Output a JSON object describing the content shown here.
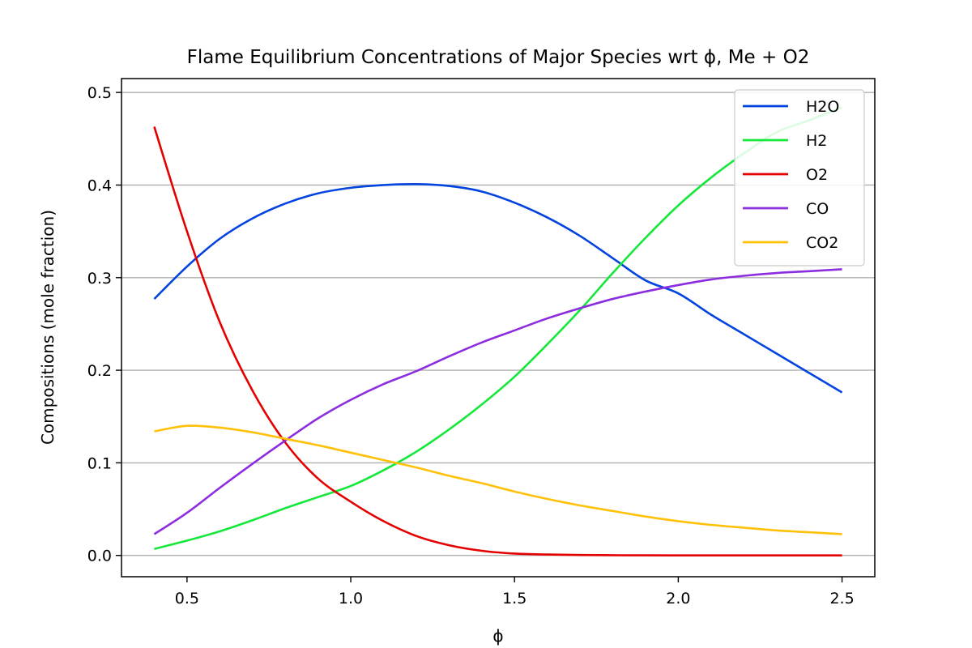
{
  "chart_data": {
    "type": "line",
    "title": "Flame Equilibrium Concentrations of Major Species wrt ϕ, Me + O2",
    "xlabel": "ϕ",
    "ylabel": "Compositions (mole fraction)",
    "xlim": [
      0.3,
      2.6
    ],
    "ylim": [
      -0.023,
      0.515
    ],
    "xticks": [
      0.5,
      1.0,
      1.5,
      2.0,
      2.5
    ],
    "xtick_labels": [
      "0.5",
      "1.0",
      "1.5",
      "2.0",
      "2.5"
    ],
    "yticks": [
      0.0,
      0.1,
      0.2,
      0.3,
      0.4,
      0.5
    ],
    "ytick_labels": [
      "0.0",
      "0.1",
      "0.2",
      "0.3",
      "0.4",
      "0.5"
    ],
    "grid": "horizontal",
    "legend_position": "top-right",
    "x": [
      0.4,
      0.5,
      0.6,
      0.7,
      0.8,
      0.9,
      1.0,
      1.1,
      1.2,
      1.3,
      1.4,
      1.5,
      1.6,
      1.7,
      1.8,
      1.9,
      2.0,
      2.1,
      2.2,
      2.3,
      2.4,
      2.5
    ],
    "series": [
      {
        "name": "H2O",
        "color": "#0343df",
        "values": [
          0.277,
          0.312,
          0.342,
          0.364,
          0.38,
          0.391,
          0.397,
          0.4,
          0.401,
          0.399,
          0.393,
          0.381,
          0.365,
          0.345,
          0.321,
          0.297,
          0.283,
          0.26,
          0.239,
          0.218,
          0.197,
          0.176
        ]
      },
      {
        "name": "H2",
        "color": "#15e83a",
        "values": [
          0.007,
          0.016,
          0.026,
          0.038,
          0.051,
          0.063,
          0.075,
          0.092,
          0.112,
          0.136,
          0.163,
          0.193,
          0.228,
          0.265,
          0.305,
          0.343,
          0.378,
          0.408,
          0.434,
          0.457,
          0.47,
          0.484
        ]
      },
      {
        "name": "O2",
        "color": "#e50000",
        "values": [
          0.463,
          0.35,
          0.252,
          0.178,
          0.122,
          0.083,
          0.058,
          0.037,
          0.021,
          0.011,
          0.005,
          0.002,
          0.001,
          0.0005,
          0.0002,
          0.0001,
          0.0,
          0.0,
          0.0,
          0.0,
          0.0,
          0.0
        ]
      },
      {
        "name": "CO",
        "color": "#8c2ee0",
        "values": [
          0.023,
          0.046,
          0.073,
          0.099,
          0.124,
          0.148,
          0.168,
          0.185,
          0.199,
          0.215,
          0.23,
          0.243,
          0.256,
          0.267,
          0.277,
          0.285,
          0.292,
          0.298,
          0.302,
          0.305,
          0.307,
          0.309
        ]
      },
      {
        "name": "CO2",
        "color": "#ffc107",
        "values": [
          0.134,
          0.14,
          0.138,
          0.133,
          0.126,
          0.119,
          0.111,
          0.103,
          0.095,
          0.086,
          0.078,
          0.069,
          0.061,
          0.054,
          0.048,
          0.042,
          0.037,
          0.033,
          0.03,
          0.027,
          0.025,
          0.023
        ]
      }
    ]
  }
}
